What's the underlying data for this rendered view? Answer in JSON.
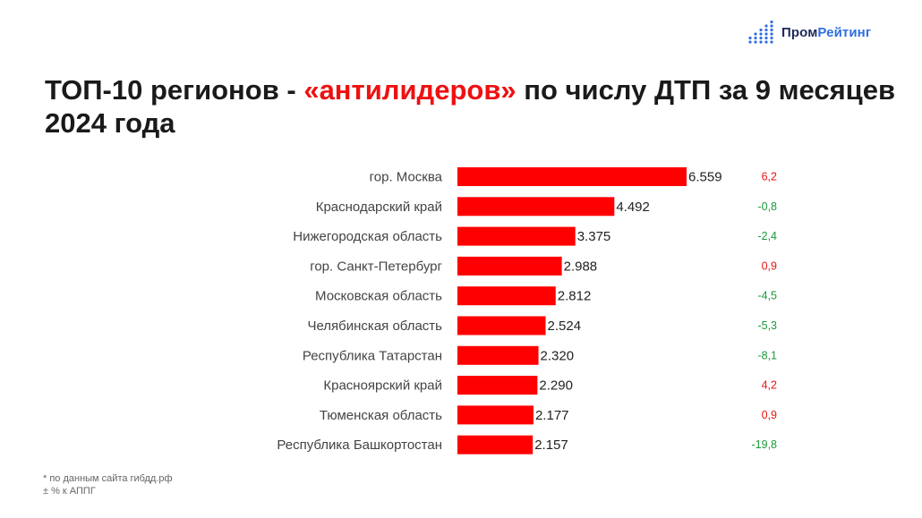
{
  "brand": {
    "name_part1": "Пром",
    "name_part2": "Рейтинг"
  },
  "title": {
    "part1": "ТОП-10 регионов - ",
    "accent": "«антилидеров»",
    "part2": " по числу ДТП за 9 месяцев 2024 года"
  },
  "colors": {
    "bar": "#ff0000",
    "positive": "#ee1111",
    "negative": "#1a9a3a",
    "accent": "#ee1111"
  },
  "chart_data": {
    "type": "bar",
    "orientation": "horizontal",
    "categories": [
      "гор. Москва",
      "Краснодарский край",
      "Нижегородская область",
      "гор. Санкт-Петербург",
      "Московская область",
      "Челябинская область",
      "Республика Татарстан",
      "Красноярский край",
      "Тюменская область",
      "Республика Башкортостан"
    ],
    "values": [
      6559,
      4492,
      3375,
      2988,
      2812,
      2524,
      2320,
      2290,
      2177,
      2157
    ],
    "value_labels": [
      "6.559",
      "4.492",
      "3.375",
      "2.988",
      "2.812",
      "2.524",
      "2.320",
      "2.290",
      "2.177",
      "2.157"
    ],
    "change_labels": [
      "6,2",
      "-0,8",
      "-2,4",
      "0,9",
      "-4,5",
      "-5,3",
      "-8,1",
      "4,2",
      "0,9",
      "-19,8"
    ],
    "change_values": [
      6.2,
      -0.8,
      -2.4,
      0.9,
      -4.5,
      -5.3,
      -8.1,
      4.2,
      0.9,
      -19.8
    ],
    "xlim": [
      0,
      6559
    ],
    "grid": false,
    "legend": "none"
  },
  "footnote": {
    "line1": "* по данным сайта гибдд.рф",
    "line2": "± % к АППГ"
  }
}
